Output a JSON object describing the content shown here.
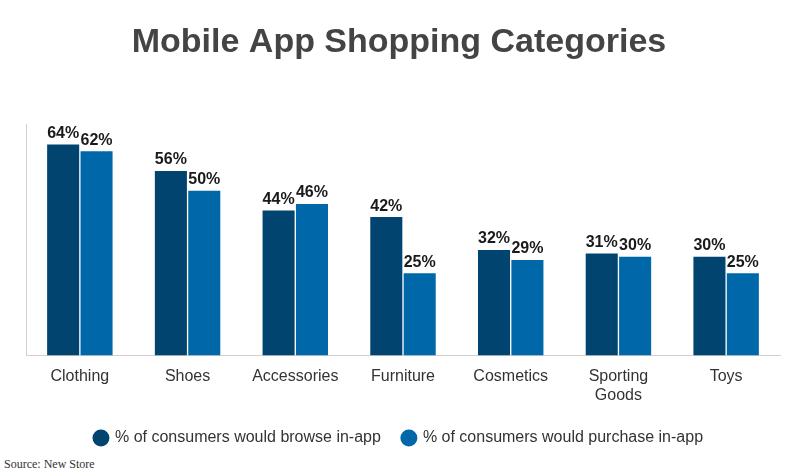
{
  "chart_data": {
    "type": "bar",
    "title": "Mobile App Shopping Categories",
    "categories": [
      "Clothing",
      "Shoes",
      "Accessories",
      "Furniture",
      "Cosmetics",
      "Sporting Goods",
      "Toys"
    ],
    "series": [
      {
        "name": "% of consumers would browse in-app",
        "color": "#00446f",
        "values": [
          64,
          56,
          44,
          42,
          32,
          31,
          30
        ],
        "value_labels": [
          "64%",
          "56%",
          "44%",
          "42%",
          "32%",
          "31%",
          "30%"
        ]
      },
      {
        "name": "% of consumers would purchase in-app",
        "color": "#0068a8",
        "values": [
          62,
          50,
          46,
          25,
          29,
          30,
          25
        ],
        "value_labels": [
          "62%",
          "50%",
          "46%",
          "25%",
          "29%",
          "30%",
          "25%"
        ]
      }
    ],
    "ylim": [
      0,
      70
    ],
    "grid": false,
    "legend": "bottom",
    "data_labels": true,
    "tick_labels": "x",
    "annotations": [
      "Source: New Store"
    ]
  }
}
